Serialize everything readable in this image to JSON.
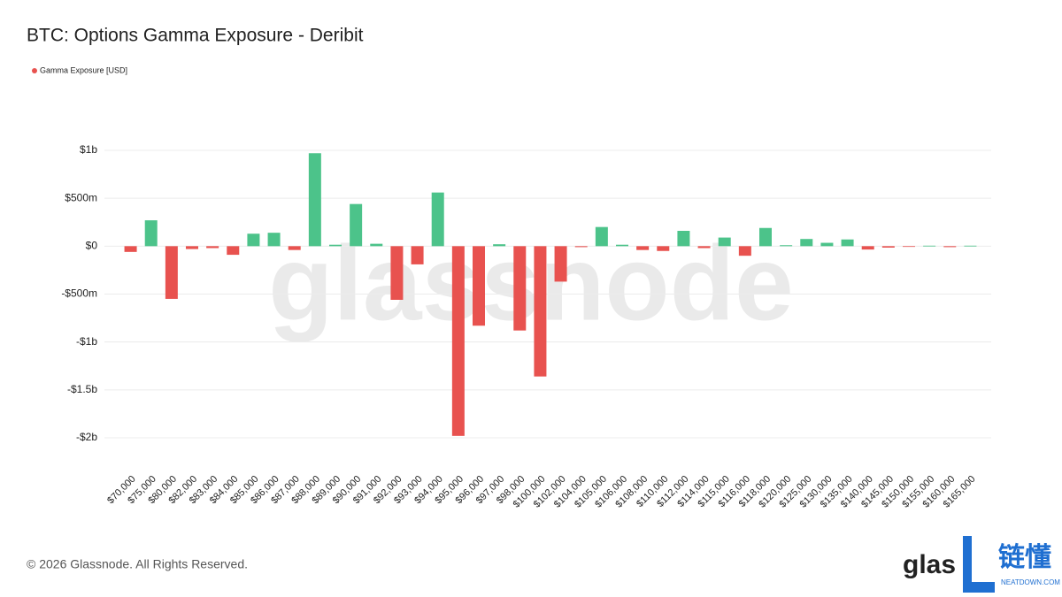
{
  "chart_data": {
    "type": "bar",
    "title": "BTC: Options Gamma Exposure - Deribit",
    "categories": [
      "$70,000",
      "$75,000",
      "$80,000",
      "$82,000",
      "$83,000",
      "$84,000",
      "$85,000",
      "$86,000",
      "$87,000",
      "$88,000",
      "$89,000",
      "$90,000",
      "$91,000",
      "$92,000",
      "$93,000",
      "$94,000",
      "$95,000",
      "$96,000",
      "$97,000",
      "$98,000",
      "$100,000",
      "$102,000",
      "$104,000",
      "$105,000",
      "$106,000",
      "$108,000",
      "$110,000",
      "$112,000",
      "$114,000",
      "$115,000",
      "$116,000",
      "$118,000",
      "$120,000",
      "$125,000",
      "$130,000",
      "$135,000",
      "$140,000",
      "$145,000",
      "$150,000",
      "$155,000",
      "$160,000",
      "$165,000"
    ],
    "series": [
      {
        "name": "Gamma Exposure [USD]",
        "color": "#e8524f",
        "values": [
          -60000000,
          270000000,
          -550000000,
          -30000000,
          -20000000,
          -90000000,
          130000000,
          140000000,
          -40000000,
          970000000,
          15000000,
          440000000,
          25000000,
          -560000000,
          -190000000,
          560000000,
          -1980000000,
          -830000000,
          20000000,
          -880000000,
          -1360000000,
          -370000000,
          -10000000,
          200000000,
          15000000,
          -40000000,
          -50000000,
          160000000,
          -20000000,
          90000000,
          -100000000,
          190000000,
          10000000,
          75000000,
          35000000,
          70000000,
          -35000000,
          -15000000,
          -5000000,
          5000000,
          -10000000,
          5000000
        ]
      }
    ],
    "positive_color": "#4cc38a",
    "ylim": [
      -2000000000,
      1000000000
    ],
    "yticks": [
      {
        "value": -2000000000,
        "label": "-$2b"
      },
      {
        "value": -1500000000,
        "label": "-$1.5b"
      },
      {
        "value": -1000000000,
        "label": "-$1b"
      },
      {
        "value": -500000000,
        "label": "-$500m"
      },
      {
        "value": 0,
        "label": "$0"
      },
      {
        "value": 500000000,
        "label": "$500m"
      },
      {
        "value": 1000000000,
        "label": "$1b"
      }
    ],
    "grid": true,
    "legend": "top-left"
  },
  "watermark": "glassnode",
  "footer": {
    "copyright": "© 2026 Glassnode. All Rights Reserved.",
    "logo": "glas",
    "brand": "链懂",
    "brand_url": "NEATDOWN.COM"
  }
}
